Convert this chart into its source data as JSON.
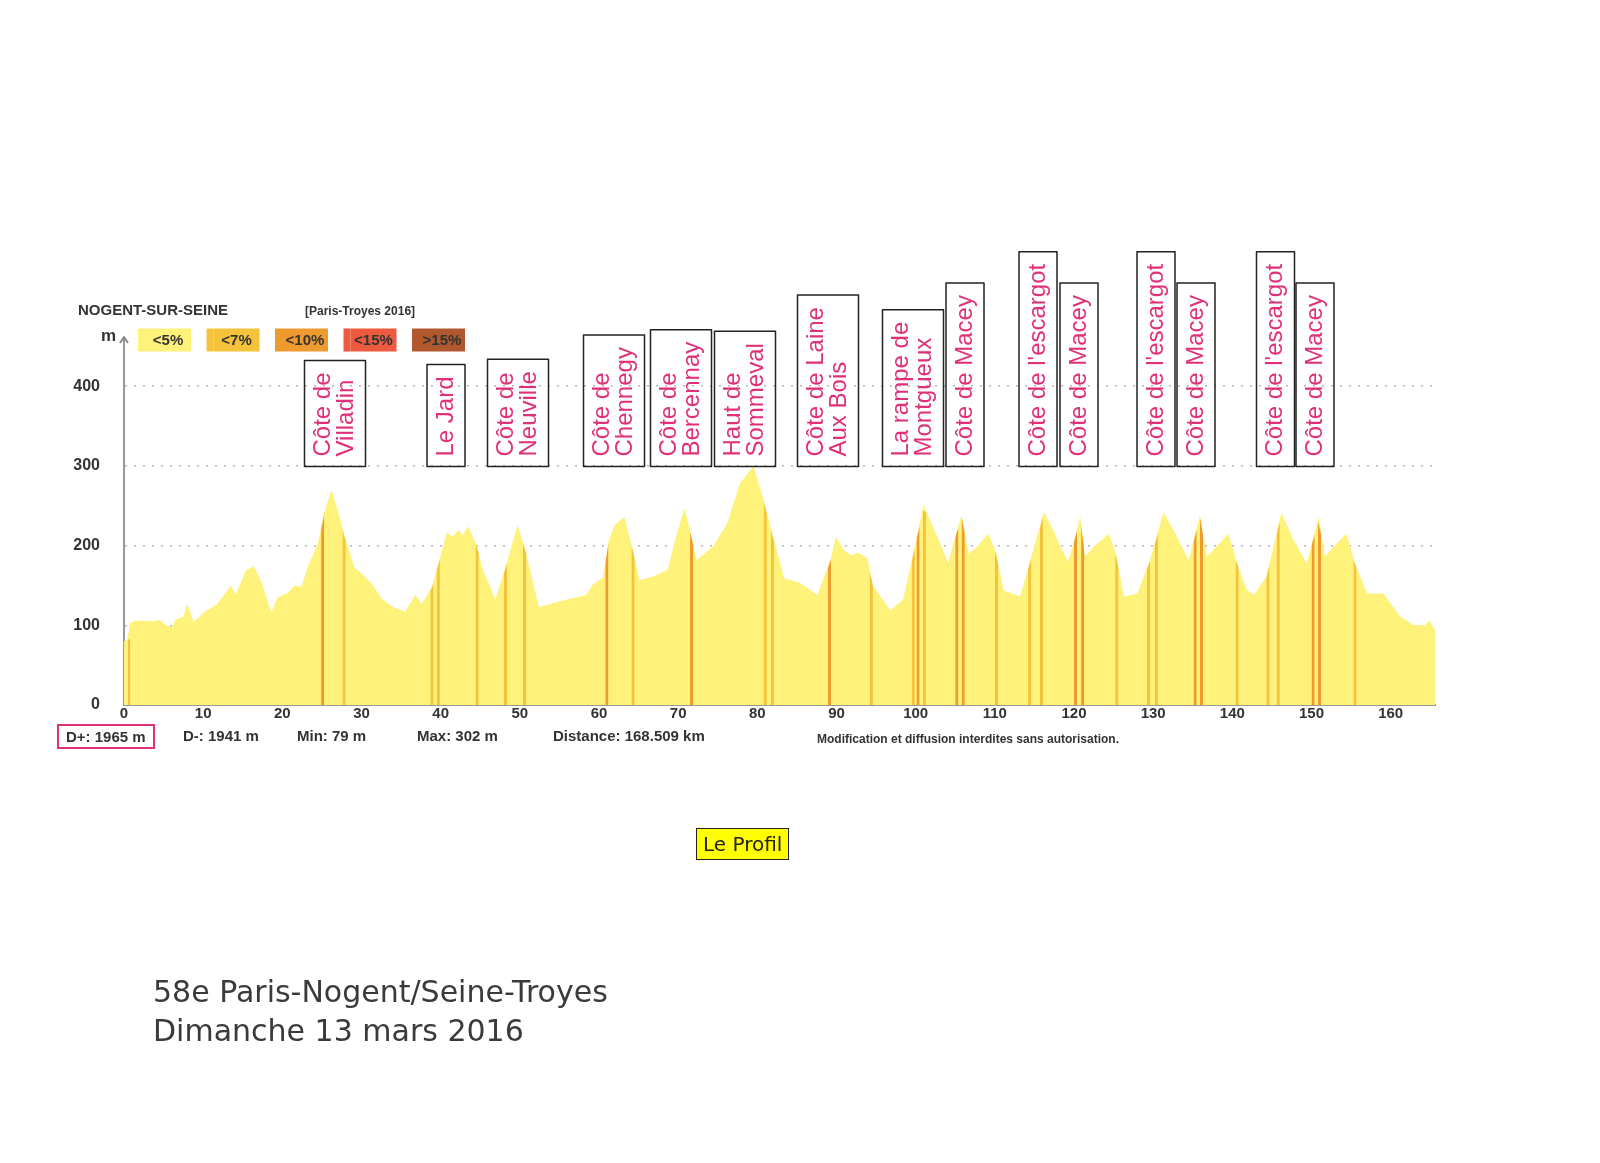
{
  "chart_data": {
    "type": "area",
    "title": "58e Paris-Nogent/Seine-Troyes",
    "subtitle": "Dimanche 13 mars 2016",
    "ylabel": "m",
    "xlim": [
      0,
      165.6
    ],
    "xticks": [
      0,
      10,
      20,
      30,
      40,
      50,
      60,
      70,
      80,
      90,
      100,
      110,
      120,
      130,
      140,
      150,
      160
    ],
    "ylim": [
      0,
      458
    ],
    "yticks": [
      0,
      100,
      200,
      300,
      400
    ],
    "grid": "y",
    "legend": "top left",
    "series": [
      {
        "name": "<5%",
        "color": "#fff27a",
        "x": [
          0,
          0.4,
          0.8,
          1.5,
          3.6,
          4.5,
          5.3,
          6.1,
          6.5,
          7.5,
          8.0,
          8.8,
          10.1,
          11.8,
          13.5,
          14.1,
          15.4,
          16.4,
          17.3,
          18.6,
          19.4,
          20.7,
          21.5,
          22.4,
          23.2,
          24.5,
          25.3,
          26.2,
          27.0,
          27.9,
          29.1,
          30.2,
          31.3,
          32.5,
          33.8,
          35.5,
          36.8,
          37.6,
          38.9,
          39.7,
          40.8,
          41.4,
          42.3,
          42.7,
          43.5,
          44.6,
          45.3,
          46.1,
          46.9,
          48.2,
          49.7,
          50.7,
          52.4,
          55.8,
          58.4,
          59.2,
          60.5,
          61.2,
          62.0,
          63.2,
          64.3,
          65.1,
          66.8,
          68.7,
          69.6,
          70.8,
          71.9,
          72.3,
          74.4,
          76.2,
          77.8,
          79.5,
          80.8,
          82.0,
          83.4,
          85.4,
          87.6,
          89.3,
          89.9,
          91.0,
          91.8,
          92.7,
          93.9,
          94.6,
          96.8,
          98.4,
          99.9,
          101.0,
          101.8,
          103.1,
          104.1,
          105.0,
          105.8,
          106.7,
          107.5,
          109.2,
          110.2,
          111.1,
          113.2,
          114.5,
          116.2,
          117.2,
          118.5,
          119.3,
          120.8,
          121.4,
          122.5,
          124.4,
          125.4,
          126.3,
          128.0,
          129.6,
          131.3,
          132.8,
          134.5,
          135.9,
          136.8,
          138.0,
          139.5,
          140.6,
          141.8,
          142.7,
          144.3,
          146.2,
          147.7,
          149.4,
          150.9,
          151.7,
          152.8,
          154.4,
          155.5,
          157.0,
          159.1,
          161.2,
          162.9,
          164.3,
          164.9,
          165.6
        ],
        "values": [
          80,
          82,
          103,
          106,
          105,
          107,
          100,
          98,
          107,
          111,
          127,
          104,
          116,
          127,
          150,
          139,
          169,
          174,
          156,
          116,
          135,
          141,
          150,
          148,
          173,
          203,
          242,
          270,
          244,
          211,
          173,
          163,
          152,
          134,
          124,
          117,
          138,
          127,
          148,
          177,
          217,
          211,
          220,
          213,
          224,
          199,
          170,
          152,
          132,
          173,
          226,
          195,
          123,
          132,
          138,
          151,
          160,
          205,
          226,
          236,
          194,
          157,
          161,
          170,
          207,
          247,
          203,
          182,
          199,
          228,
          278,
          300,
          257,
          211,
          159,
          153,
          138,
          184,
          211,
          194,
          188,
          191,
          184,
          150,
          119,
          132,
          199,
          251,
          232,
          203,
          178,
          211,
          238,
          190,
          196,
          215,
          190,
          144,
          136,
          182,
          242,
          223,
          194,
          180,
          236,
          186,
          199,
          215,
          186,
          136,
          140,
          182,
          242,
          215,
          182,
          238,
          186,
          199,
          215,
          178,
          145,
          138,
          161,
          242,
          207,
          178,
          236,
          186,
          199,
          215,
          178,
          140,
          140,
          111,
          100,
          100,
          106,
          94
        ]
      },
      {
        "name": "<7%",
        "color": "#f5c23c",
        "x": [
          0.5,
          0.8,
          0.9,
          27.6,
          28.0,
          28.1,
          38.7,
          39.1,
          39.2,
          39.5,
          39.9,
          40.0,
          44.4,
          44.8,
          44.9,
          48.0,
          48.4,
          48.5,
          50.4,
          50.8,
          50.9,
          64.1,
          64.5,
          64.6,
          80.8,
          81.2,
          81.3,
          81.7,
          82.1,
          82.2,
          94.2,
          94.6,
          94.7,
          99.5,
          99.9,
          100.0,
          100.9,
          101.3,
          101.4,
          110.0,
          110.4,
          110.5,
          114.2,
          114.6,
          114.7,
          115.7,
          116.1,
          116.2,
          125.2,
          125.6,
          125.7,
          129.2,
          129.6,
          129.7,
          130.2,
          130.6,
          130.7,
          140.4,
          140.8,
          140.9,
          144.3,
          144.7,
          144.8,
          145.6,
          146.0,
          146.1,
          155.3,
          155.7
        ],
        "values": [
          81,
          84,
          null,
          220,
          205,
          null,
          143,
          153,
          null,
          168,
          183,
          null,
          203,
          190,
          null,
          165,
          178,
          null,
          203,
          189,
          null,
          200,
          184,
          null,
          255,
          240,
          null,
          220,
          205,
          null,
          167,
          150,
          null,
          180,
          197,
          null,
          244,
          242,
          null,
          194,
          178,
          null,
          170,
          184,
          null,
          222,
          236,
          null,
          190,
          173,
          null,
          170,
          180,
          null,
          201,
          215,
          null,
          183,
          171,
          null,
          160,
          176,
          null,
          214,
          231,
          null,
          183,
          171
        ]
      },
      {
        "name": "<10%",
        "color": "#ef9a2e",
        "x": [
          24.9,
          25.3,
          25.4,
          60.8,
          61.2,
          61.3,
          71.5,
          71.9,
          72.0,
          88.9,
          89.3,
          89.4,
          100.1,
          100.5,
          100.6,
          105.0,
          105.4,
          105.5,
          105.8,
          106.2,
          106.3,
          120.0,
          120.4,
          120.5,
          120.9,
          121.3,
          121.4,
          135.1,
          135.5,
          135.6,
          135.9,
          136.3,
          136.4,
          150.0,
          150.4,
          150.5,
          150.8,
          151.2
        ],
        "values": [
          220,
          240,
          null,
          177,
          203,
          null,
          217,
          201,
          null,
          171,
          183,
          null,
          207,
          225,
          null,
          210,
          223,
          null,
          236,
          215,
          null,
          204,
          219,
          null,
          226,
          193,
          null,
          204,
          220,
          null,
          236,
          213,
          null,
          199,
          215,
          null,
          230,
          215
        ]
      },
      {
        "name": "<15%",
        "color": "#ec5a3f"
      },
      {
        "name": ">15%",
        "color": "#b0582e"
      }
    ],
    "annotations": [
      "NOGENT-SUR-SEINE",
      "[Paris-Troyes 2016]",
      "D+: 1965 m",
      "D-: 1941 m",
      "Min: 79 m",
      "Max: 302 m",
      "Distance: 168.509 km",
      "Modification et diffusion interdites sans autorisation.",
      "Le Profil",
      "Côte de\nVilladin",
      "Le Jard",
      "Côte de\nNeuville",
      "Côte de\nChennegy",
      "Côte de\nBercennay",
      "Haut de\nSommeval",
      "Côte de Laine\nAux Bois",
      "La rampe de\nMontgueux",
      "Côte de Macey",
      "Côte de l'escargot",
      "Côte de Macey",
      "Côte de l'escargot",
      "Côte de Macey",
      "Côte de l'escargot",
      "Côte de Macey"
    ]
  }
}
